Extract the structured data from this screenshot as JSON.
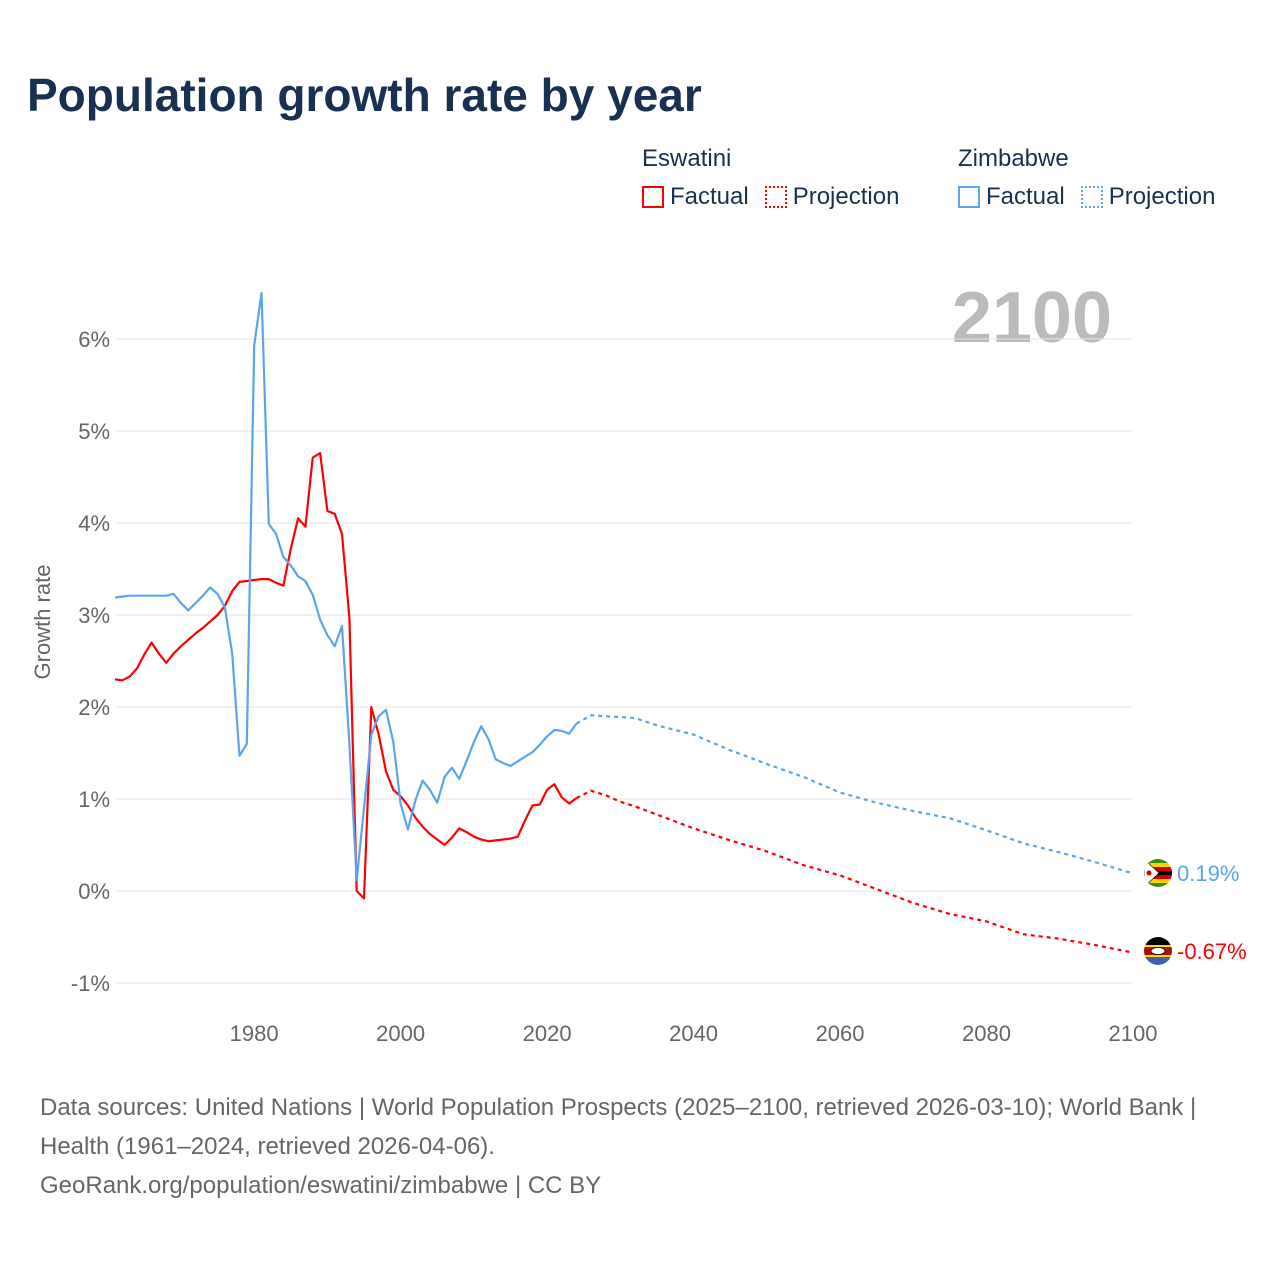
{
  "title": "Population growth rate by year",
  "legend": {
    "groups": [
      {
        "name": "Eswatini",
        "factual": "Factual",
        "projection": "Projection",
        "color": "#ff0000"
      },
      {
        "name": "Zimbabwe",
        "factual": "Factual",
        "projection": "Projection",
        "color": "#5aa5ec"
      }
    ]
  },
  "year_label": "2100",
  "footer": {
    "sources": "Data sources: United Nations | World Population Prospects (2025–2100, retrieved 2026-03-10); World Bank | Health (1961–2024, retrieved 2026-04-06).",
    "url": "GeoRank.org/population/eswatini/zimbabwe | CC BY"
  },
  "chart_data": {
    "type": "line",
    "title": "Population growth rate by year",
    "xlabel": "",
    "ylabel": "Growth rate",
    "xlim": [
      1961,
      2100
    ],
    "ylim": [
      -1.15,
      6.6
    ],
    "x_ticks": [
      1980,
      2000,
      2020,
      2040,
      2060,
      2080,
      2100
    ],
    "x_tick_labels": [
      "1980",
      "2000",
      "2020",
      "2040",
      "2060",
      "2080",
      "2100"
    ],
    "y_ticks": [
      -1,
      0,
      1,
      2,
      3,
      4,
      5,
      6
    ],
    "y_tick_labels": [
      "-1%",
      "0%",
      "1%",
      "2%",
      "3%",
      "4%",
      "5%",
      "6%"
    ],
    "grid": true,
    "legend_position": "top-right",
    "series": [
      {
        "name": "Eswatini",
        "color": "#ff0000",
        "end_label": "-0.67%",
        "factual": {
          "x": [
            1961,
            1962,
            1963,
            1964,
            1965,
            1966,
            1967,
            1968,
            1969,
            1970,
            1971,
            1972,
            1973,
            1974,
            1975,
            1976,
            1977,
            1978,
            1979,
            1980,
            1981,
            1982,
            1983,
            1984,
            1985,
            1986,
            1987,
            1988,
            1989,
            1990,
            1991,
            1992,
            1993,
            1994,
            1995,
            1996,
            1997,
            1998,
            1999,
            2000,
            2001,
            2002,
            2003,
            2004,
            2005,
            2006,
            2007,
            2008,
            2009,
            2010,
            2011,
            2012,
            2013,
            2014,
            2015,
            2016,
            2017,
            2018,
            2019,
            2020,
            2021,
            2022,
            2023,
            2024
          ],
          "y": [
            2.3,
            2.29,
            2.33,
            2.42,
            2.57,
            2.7,
            2.58,
            2.48,
            2.58,
            2.66,
            2.73,
            2.8,
            2.86,
            2.93,
            3.0,
            3.1,
            3.26,
            3.36,
            3.37,
            3.38,
            3.39,
            3.39,
            3.35,
            3.32,
            3.72,
            4.05,
            3.96,
            4.71,
            4.76,
            4.13,
            4.1,
            3.88,
            2.97,
            0.0,
            -0.08,
            2.0,
            1.7,
            1.3,
            1.1,
            1.03,
            0.93,
            0.8,
            0.7,
            0.62,
            0.56,
            0.5,
            0.58,
            0.68,
            0.64,
            0.59,
            0.56,
            0.54,
            0.55,
            0.56,
            0.57,
            0.59,
            0.77,
            0.93,
            0.94,
            1.1,
            1.16,
            1.02,
            0.95,
            1.01
          ]
        },
        "projection": {
          "x": [
            2024,
            2026,
            2028,
            2030,
            2032,
            2035,
            2040,
            2045,
            2050,
            2055,
            2060,
            2065,
            2070,
            2075,
            2080,
            2085,
            2090,
            2095,
            2100
          ],
          "y": [
            1.01,
            1.09,
            1.04,
            0.97,
            0.92,
            0.83,
            0.68,
            0.55,
            0.43,
            0.28,
            0.17,
            0.02,
            -0.13,
            -0.25,
            -0.33,
            -0.47,
            -0.52,
            -0.59,
            -0.67
          ]
        }
      },
      {
        "name": "Zimbabwe",
        "color": "#5aa5ec",
        "end_label": "0.19%",
        "factual": {
          "x": [
            1961,
            1962,
            1963,
            1964,
            1965,
            1966,
            1967,
            1968,
            1969,
            1970,
            1971,
            1972,
            1973,
            1974,
            1975,
            1976,
            1977,
            1978,
            1979,
            1980,
            1981,
            1982,
            1983,
            1984,
            1985,
            1986,
            1987,
            1988,
            1989,
            1990,
            1991,
            1992,
            1993,
            1994,
            1995,
            1996,
            1997,
            1998,
            1999,
            2000,
            2001,
            2002,
            2003,
            2004,
            2005,
            2006,
            2007,
            2008,
            2009,
            2010,
            2011,
            2012,
            2013,
            2014,
            2015,
            2016,
            2017,
            2018,
            2019,
            2020,
            2021,
            2022,
            2023,
            2024
          ],
          "y": [
            3.19,
            3.2,
            3.21,
            3.21,
            3.21,
            3.21,
            3.21,
            3.21,
            3.23,
            3.13,
            3.05,
            3.13,
            3.21,
            3.3,
            3.23,
            3.08,
            2.58,
            1.47,
            1.6,
            5.93,
            6.5,
            3.99,
            3.88,
            3.63,
            3.54,
            3.42,
            3.37,
            3.22,
            2.95,
            2.78,
            2.66,
            2.88,
            1.6,
            0.12,
            0.9,
            1.7,
            1.9,
            1.97,
            1.62,
            0.95,
            0.67,
            0.98,
            1.2,
            1.1,
            0.96,
            1.24,
            1.34,
            1.22,
            1.41,
            1.62,
            1.79,
            1.65,
            1.43,
            1.39,
            1.36,
            1.41,
            1.46,
            1.51,
            1.59,
            1.68,
            1.75,
            1.74,
            1.71,
            1.82
          ]
        },
        "projection": {
          "x": [
            2024,
            2026,
            2028,
            2030,
            2032,
            2035,
            2040,
            2045,
            2050,
            2055,
            2060,
            2065,
            2070,
            2075,
            2080,
            2085,
            2090,
            2095,
            2100
          ],
          "y": [
            1.82,
            1.91,
            1.9,
            1.89,
            1.88,
            1.8,
            1.7,
            1.53,
            1.38,
            1.24,
            1.07,
            0.96,
            0.87,
            0.79,
            0.66,
            0.52,
            0.42,
            0.31,
            0.19
          ]
        }
      }
    ]
  }
}
